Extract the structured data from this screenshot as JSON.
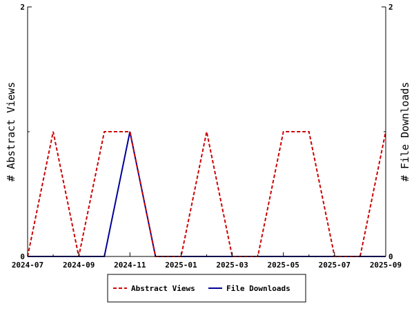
{
  "chart_data": {
    "type": "line",
    "title": "",
    "x": [
      "2024-07",
      "2024-08",
      "2024-09",
      "2024-10",
      "2024-11",
      "2024-12",
      "2025-01",
      "2025-02",
      "2025-03",
      "2025-04",
      "2025-05",
      "2025-06",
      "2025-07",
      "2025-08",
      "2025-09"
    ],
    "x_tick_labels": [
      "2024-07",
      "2024-09",
      "2024-11",
      "2025-01",
      "2025-03",
      "2025-05",
      "2025-07",
      "2025-09"
    ],
    "series": [
      {
        "name": "Abstract Views",
        "axis": "left",
        "color": "#cc0000",
        "style": "dashed",
        "values": [
          0,
          1,
          0,
          1,
          1,
          0,
          0,
          1,
          0,
          0,
          1,
          1,
          0,
          0,
          1
        ]
      },
      {
        "name": "File Downloads",
        "axis": "right",
        "color": "#000099",
        "style": "solid",
        "values": [
          0,
          0,
          0,
          0,
          1,
          0,
          0,
          0,
          0,
          0,
          0,
          0,
          0,
          0,
          0
        ]
      }
    ],
    "y_left": {
      "label": "# Abstract Views",
      "range": [
        0,
        2
      ],
      "ticks": [
        "0",
        "2"
      ]
    },
    "y_right": {
      "label": "# File Downloads",
      "range": [
        0,
        2
      ],
      "ticks": [
        "0",
        "2"
      ]
    },
    "grid": false,
    "legend_placement": "bottom-center"
  }
}
